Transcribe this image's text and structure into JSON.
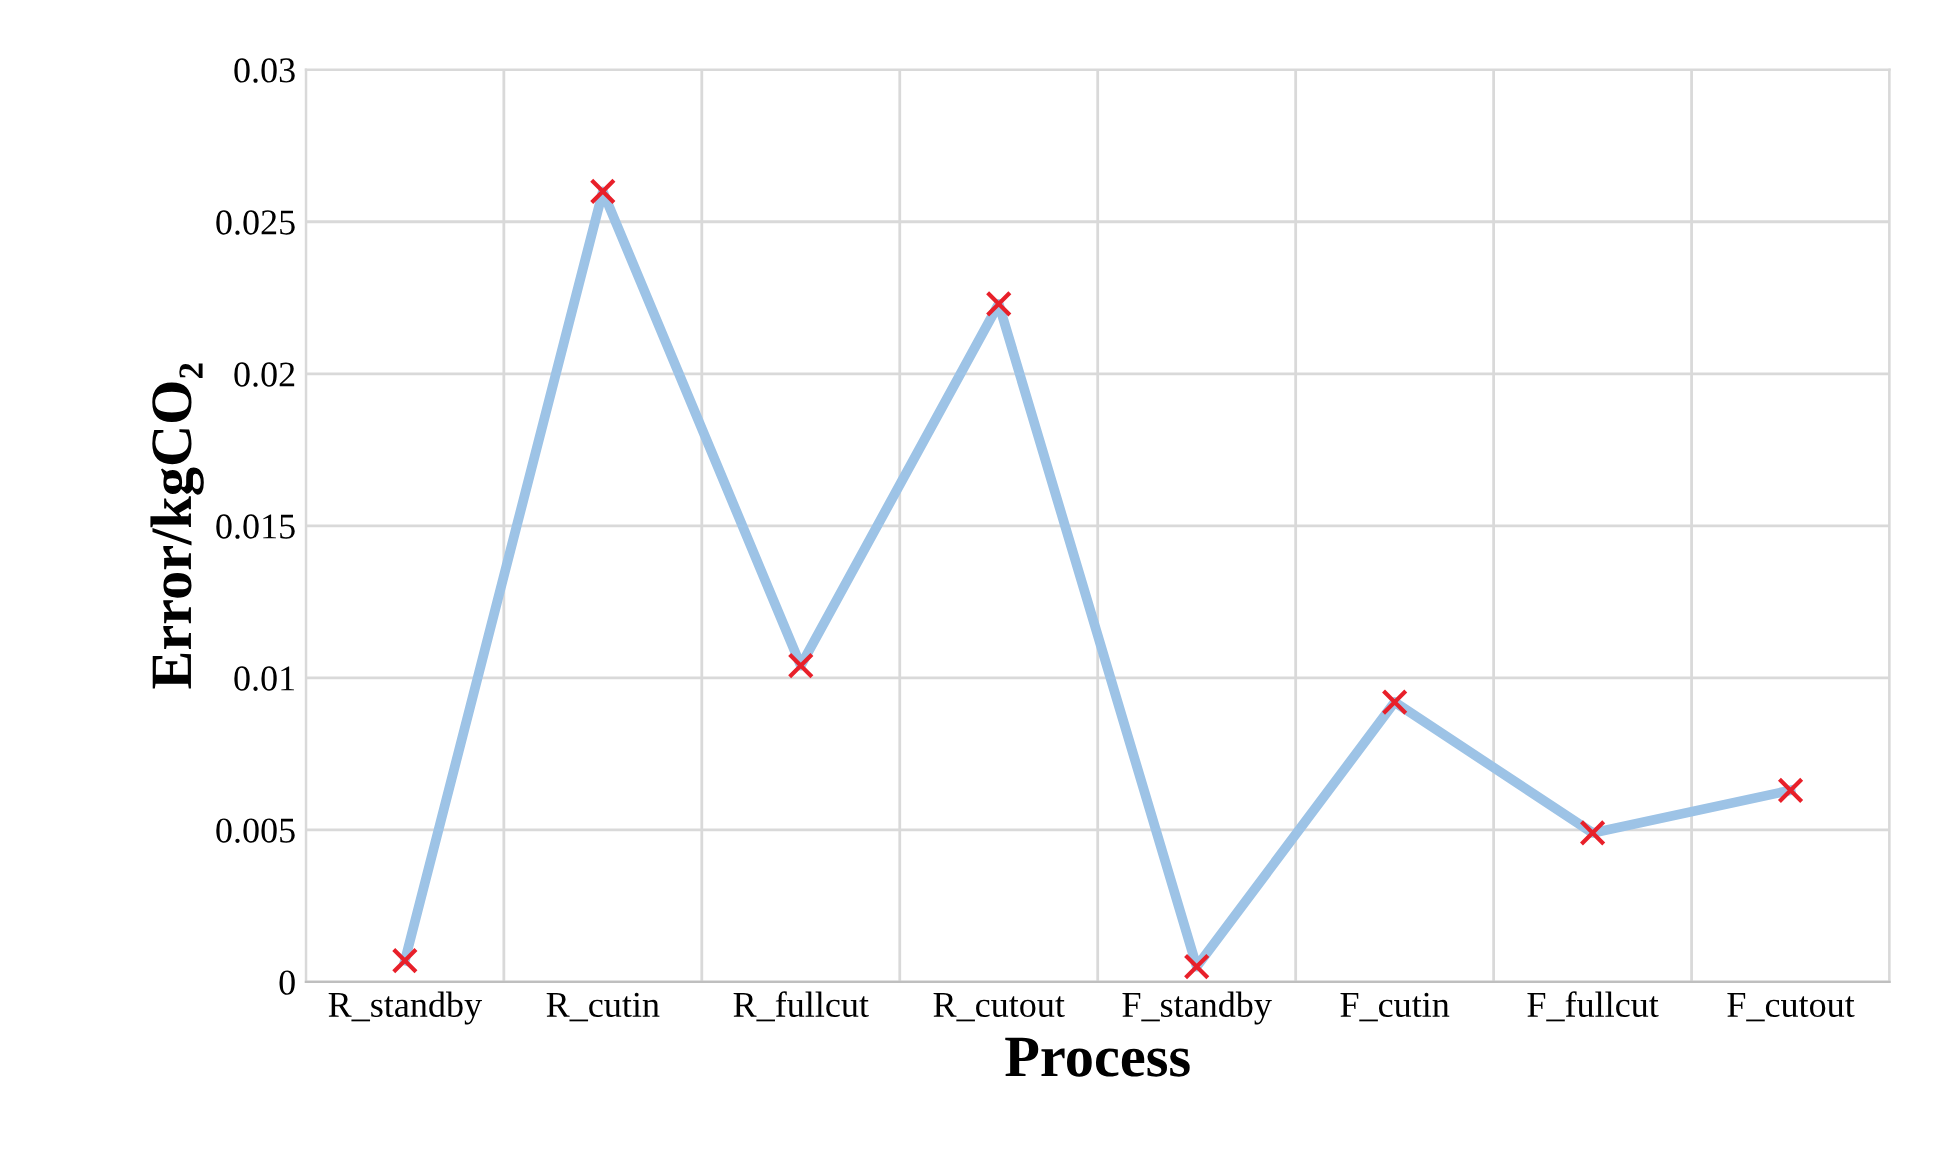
{
  "chart_data": {
    "type": "line",
    "xlabel": "Process",
    "ylabel": "Error/kgCO₂",
    "categories": [
      "R_standby",
      "R_cutin",
      "R_fullcut",
      "R_cutout",
      "F_standby",
      "F_cutin",
      "F_fullcut",
      "F_cutout"
    ],
    "series": [
      {
        "color": "#9dc3e6",
        "values": [
          0.0007,
          0.026,
          0.0104,
          0.0223,
          0.0005,
          0.0092,
          0.0049,
          0.0063
        ]
      }
    ],
    "ylim": [
      0,
      0.03
    ],
    "yticks": [
      0,
      0.005,
      0.01,
      0.015,
      0.02,
      0.025,
      0.03
    ],
    "grid": true,
    "marker": "cross",
    "line_style": "solid"
  }
}
